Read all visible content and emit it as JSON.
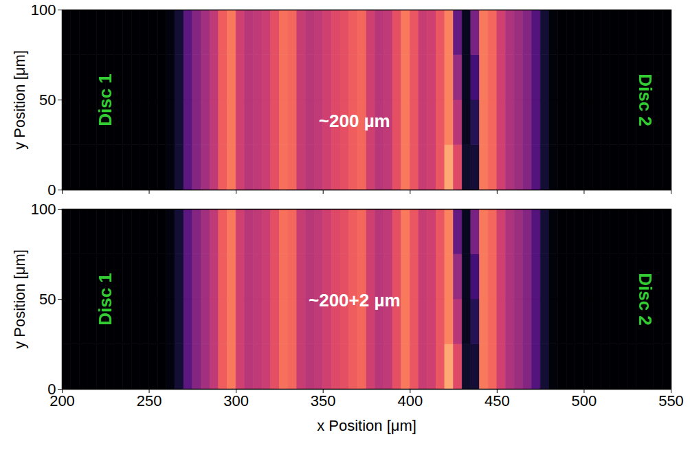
{
  "chart_data": [
    {
      "type": "heatmap",
      "ylabel": "y Position [μm]",
      "xlim": [
        200,
        550
      ],
      "xticks": [
        200,
        250,
        300,
        350,
        400,
        450,
        500,
        550
      ],
      "ylim": [
        0,
        100
      ],
      "yticks": [
        0,
        50,
        100
      ],
      "tick_labels": "y",
      "color": "magma",
      "zlim": [
        0,
        1
      ],
      "x_bins": [
        200,
        205,
        210,
        215,
        220,
        225,
        230,
        235,
        240,
        245,
        250,
        255,
        260,
        265,
        270,
        275,
        280,
        285,
        290,
        295,
        300,
        305,
        310,
        315,
        320,
        325,
        330,
        335,
        340,
        345,
        350,
        355,
        360,
        365,
        370,
        375,
        380,
        385,
        390,
        395,
        400,
        405,
        410,
        415,
        420,
        425,
        430,
        435,
        440,
        445,
        450,
        455,
        460,
        465,
        470,
        475,
        480,
        485,
        490,
        495,
        500,
        505,
        510,
        515,
        520,
        525,
        530,
        535,
        540,
        545,
        550
      ],
      "y_bins": [
        0,
        25,
        50,
        75,
        100
      ],
      "cells": [
        [
          0,
          0,
          0,
          0,
          0,
          0,
          0,
          0,
          0,
          0,
          0,
          0,
          0.03,
          0.1,
          0.28,
          0.38,
          0.45,
          0.52,
          0.66,
          0.72,
          0.56,
          0.5,
          0.52,
          0.55,
          0.62,
          0.7,
          0.68,
          0.54,
          0.5,
          0.52,
          0.56,
          0.6,
          0.62,
          0.66,
          0.68,
          0.56,
          0.5,
          0.52,
          0.62,
          0.72,
          0.64,
          0.54,
          0.56,
          0.64,
          0.82,
          0.6,
          0.08,
          0.1,
          0.72,
          0.68,
          0.56,
          0.48,
          0.44,
          0.38,
          0.26,
          0.1,
          0.02,
          0,
          0,
          0,
          0,
          0,
          0,
          0,
          0,
          0,
          0,
          0,
          0,
          0
        ],
        [
          0,
          0,
          0,
          0,
          0,
          0,
          0,
          0,
          0,
          0,
          0,
          0,
          0.03,
          0.1,
          0.28,
          0.38,
          0.45,
          0.52,
          0.66,
          0.72,
          0.56,
          0.5,
          0.52,
          0.55,
          0.62,
          0.7,
          0.68,
          0.54,
          0.5,
          0.52,
          0.56,
          0.6,
          0.62,
          0.66,
          0.68,
          0.56,
          0.5,
          0.52,
          0.62,
          0.72,
          0.64,
          0.54,
          0.56,
          0.64,
          0.74,
          0.5,
          0.06,
          0.15,
          0.72,
          0.68,
          0.56,
          0.48,
          0.44,
          0.38,
          0.26,
          0.1,
          0.02,
          0,
          0,
          0,
          0,
          0,
          0,
          0,
          0,
          0,
          0,
          0,
          0,
          0
        ],
        [
          0,
          0,
          0,
          0,
          0,
          0,
          0,
          0,
          0,
          0,
          0,
          0,
          0.03,
          0.1,
          0.28,
          0.38,
          0.45,
          0.52,
          0.66,
          0.72,
          0.56,
          0.5,
          0.52,
          0.55,
          0.62,
          0.7,
          0.68,
          0.54,
          0.5,
          0.52,
          0.56,
          0.6,
          0.62,
          0.66,
          0.68,
          0.56,
          0.5,
          0.52,
          0.62,
          0.72,
          0.64,
          0.54,
          0.56,
          0.64,
          0.74,
          0.42,
          0.06,
          0.22,
          0.72,
          0.68,
          0.56,
          0.48,
          0.44,
          0.38,
          0.26,
          0.1,
          0.02,
          0,
          0,
          0,
          0,
          0,
          0,
          0,
          0,
          0,
          0,
          0,
          0,
          0
        ],
        [
          0,
          0,
          0,
          0,
          0,
          0,
          0,
          0,
          0,
          0,
          0,
          0,
          0.03,
          0.1,
          0.28,
          0.38,
          0.45,
          0.52,
          0.66,
          0.72,
          0.56,
          0.5,
          0.52,
          0.55,
          0.62,
          0.7,
          0.68,
          0.54,
          0.5,
          0.52,
          0.56,
          0.6,
          0.62,
          0.66,
          0.68,
          0.56,
          0.5,
          0.52,
          0.62,
          0.72,
          0.64,
          0.54,
          0.56,
          0.64,
          0.74,
          0.3,
          0.06,
          0.35,
          0.72,
          0.68,
          0.56,
          0.48,
          0.44,
          0.38,
          0.26,
          0.1,
          0.02,
          0,
          0,
          0,
          0,
          0,
          0,
          0,
          0,
          0,
          0,
          0,
          0,
          0
        ]
      ],
      "annotations": [
        {
          "text": "Disc 1",
          "x": 225,
          "y": 50,
          "color": "#33cc33"
        },
        {
          "text": "~200 µm",
          "x": 368,
          "y": 38,
          "color": "#ffffff"
        },
        {
          "text": "Disc 2",
          "x": 535,
          "y": 50,
          "color": "#33cc33"
        }
      ]
    },
    {
      "type": "heatmap",
      "xlabel": "x Position [μm]",
      "ylabel": "y Position [μm]",
      "xlim": [
        200,
        550
      ],
      "xticks": [
        200,
        250,
        300,
        350,
        400,
        450,
        500,
        550
      ],
      "ylim": [
        0,
        100
      ],
      "yticks": [
        0,
        50,
        100
      ],
      "color": "magma",
      "zlim": [
        0,
        1
      ],
      "x_bins": [
        200,
        205,
        210,
        215,
        220,
        225,
        230,
        235,
        240,
        245,
        250,
        255,
        260,
        265,
        270,
        275,
        280,
        285,
        290,
        295,
        300,
        305,
        310,
        315,
        320,
        325,
        330,
        335,
        340,
        345,
        350,
        355,
        360,
        365,
        370,
        375,
        380,
        385,
        390,
        395,
        400,
        405,
        410,
        415,
        420,
        425,
        430,
        435,
        440,
        445,
        450,
        455,
        460,
        465,
        470,
        475,
        480,
        485,
        490,
        495,
        500,
        505,
        510,
        515,
        520,
        525,
        530,
        535,
        540,
        545,
        550
      ],
      "y_bins": [
        0,
        25,
        50,
        75,
        100
      ],
      "cells": [
        [
          0,
          0,
          0,
          0,
          0,
          0,
          0,
          0,
          0,
          0,
          0,
          0,
          0.03,
          0.1,
          0.28,
          0.38,
          0.45,
          0.52,
          0.66,
          0.72,
          0.56,
          0.5,
          0.52,
          0.55,
          0.62,
          0.7,
          0.68,
          0.54,
          0.5,
          0.52,
          0.56,
          0.6,
          0.62,
          0.66,
          0.68,
          0.56,
          0.5,
          0.52,
          0.62,
          0.72,
          0.64,
          0.54,
          0.56,
          0.64,
          0.82,
          0.6,
          0.08,
          0.1,
          0.72,
          0.68,
          0.56,
          0.48,
          0.44,
          0.38,
          0.26,
          0.1,
          0.02,
          0,
          0,
          0,
          0,
          0,
          0,
          0,
          0,
          0,
          0,
          0,
          0,
          0
        ],
        [
          0,
          0,
          0,
          0,
          0,
          0,
          0,
          0,
          0,
          0,
          0,
          0,
          0.03,
          0.1,
          0.28,
          0.38,
          0.45,
          0.52,
          0.66,
          0.72,
          0.56,
          0.5,
          0.52,
          0.55,
          0.62,
          0.7,
          0.68,
          0.54,
          0.5,
          0.52,
          0.56,
          0.6,
          0.62,
          0.66,
          0.68,
          0.56,
          0.5,
          0.52,
          0.62,
          0.72,
          0.64,
          0.54,
          0.56,
          0.64,
          0.74,
          0.5,
          0.06,
          0.15,
          0.72,
          0.68,
          0.56,
          0.48,
          0.44,
          0.38,
          0.26,
          0.1,
          0.02,
          0,
          0,
          0,
          0,
          0,
          0,
          0,
          0,
          0,
          0,
          0,
          0,
          0
        ],
        [
          0,
          0,
          0,
          0,
          0,
          0,
          0,
          0,
          0,
          0,
          0,
          0,
          0.03,
          0.1,
          0.28,
          0.38,
          0.45,
          0.52,
          0.66,
          0.72,
          0.56,
          0.5,
          0.52,
          0.55,
          0.62,
          0.7,
          0.68,
          0.54,
          0.5,
          0.52,
          0.56,
          0.6,
          0.62,
          0.66,
          0.68,
          0.56,
          0.5,
          0.52,
          0.62,
          0.72,
          0.64,
          0.54,
          0.56,
          0.64,
          0.74,
          0.42,
          0.06,
          0.22,
          0.72,
          0.68,
          0.56,
          0.48,
          0.44,
          0.38,
          0.26,
          0.1,
          0.02,
          0,
          0,
          0,
          0,
          0,
          0,
          0,
          0,
          0,
          0,
          0,
          0,
          0
        ],
        [
          0,
          0,
          0,
          0,
          0,
          0,
          0,
          0,
          0,
          0,
          0,
          0,
          0.03,
          0.1,
          0.28,
          0.38,
          0.45,
          0.52,
          0.66,
          0.72,
          0.56,
          0.5,
          0.52,
          0.55,
          0.62,
          0.7,
          0.68,
          0.54,
          0.5,
          0.52,
          0.56,
          0.6,
          0.62,
          0.66,
          0.68,
          0.56,
          0.5,
          0.52,
          0.62,
          0.72,
          0.64,
          0.54,
          0.56,
          0.64,
          0.74,
          0.3,
          0.06,
          0.35,
          0.72,
          0.68,
          0.56,
          0.48,
          0.44,
          0.38,
          0.26,
          0.1,
          0.02,
          0,
          0,
          0,
          0,
          0,
          0,
          0,
          0,
          0,
          0,
          0,
          0,
          0
        ]
      ],
      "annotations": [
        {
          "text": "Disc 1",
          "x": 225,
          "y": 50,
          "color": "#33cc33"
        },
        {
          "text": "~200+2 µm",
          "x": 368,
          "y": 49,
          "color": "#ffffff"
        },
        {
          "text": "Disc 2",
          "x": 535,
          "y": 50,
          "color": "#33cc33"
        }
      ]
    }
  ]
}
